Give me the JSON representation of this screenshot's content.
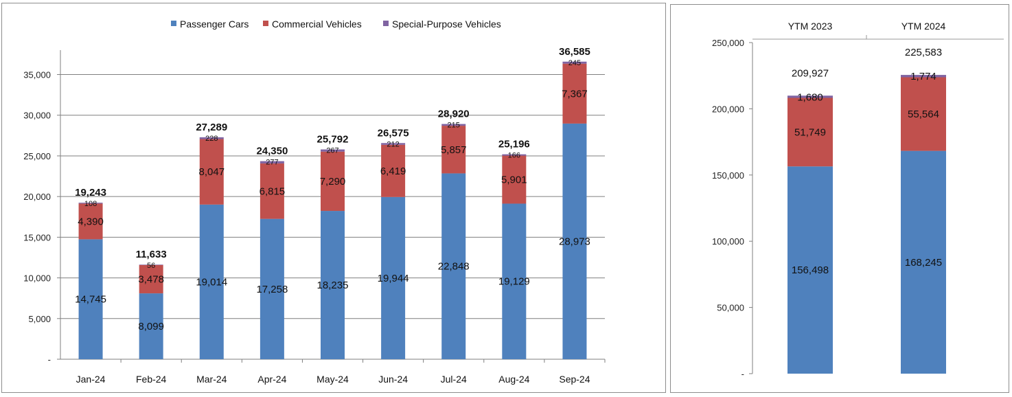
{
  "chart_data": [
    {
      "type": "bar",
      "stacked": true,
      "categories": [
        "Jan-24",
        "Feb-24",
        "Mar-24",
        "Apr-24",
        "May-24",
        "Jun-24",
        "Jul-24",
        "Aug-24",
        "Sep-24"
      ],
      "series": [
        {
          "name": "Passenger Cars",
          "color": "#4f81bd",
          "values": [
            14745,
            8099,
            19014,
            17258,
            18235,
            19944,
            22848,
            19129,
            28973
          ],
          "labels": [
            "14,745",
            "8,099",
            "19,014",
            "17,258",
            "18,235",
            "19,944",
            "22,848",
            "19,129",
            "28,973"
          ]
        },
        {
          "name": "Commercial Vehicles",
          "color": "#c0504d",
          "values": [
            4390,
            3478,
            8047,
            6815,
            7290,
            6419,
            5857,
            5901,
            7367
          ],
          "labels": [
            "4,390",
            "3,478",
            "8,047",
            "6,815",
            "7,290",
            "6,419",
            "5,857",
            "5,901",
            "7,367"
          ]
        },
        {
          "name": "Special-Purpose Vehicles",
          "color": "#8064a2",
          "values": [
            108,
            56,
            228,
            277,
            267,
            212,
            215,
            166,
            245
          ],
          "labels": [
            "108",
            "56",
            "228",
            "277",
            "267",
            "212",
            "215",
            "166",
            "245"
          ]
        }
      ],
      "totals": [
        19243,
        11633,
        27289,
        24350,
        25792,
        26575,
        28920,
        25196,
        36585
      ],
      "total_labels": [
        "19,243",
        "11,633",
        "27,289",
        "24,350",
        "25,792",
        "26,575",
        "28,920",
        "25,196",
        "36,585"
      ],
      "ylim": [
        0,
        38000
      ],
      "yticks": [
        0,
        5000,
        10000,
        15000,
        20000,
        25000,
        30000,
        35000
      ],
      "ytick_labels": [
        "-",
        "5,000",
        "10,000",
        "15,000",
        "20,000",
        "25,000",
        "30,000",
        "35,000"
      ],
      "grid": true,
      "legend_position": "top"
    },
    {
      "type": "bar",
      "stacked": true,
      "categories": [
        "YTM 2023",
        "YTM 2024"
      ],
      "series": [
        {
          "name": "Passenger Cars",
          "color": "#4f81bd",
          "values": [
            156498,
            168245
          ],
          "labels": [
            "156,498",
            "168,245"
          ]
        },
        {
          "name": "Commercial Vehicles",
          "color": "#c0504d",
          "values": [
            51749,
            55564
          ],
          "labels": [
            "51,749",
            "55,564"
          ]
        },
        {
          "name": "Special-Purpose Vehicles",
          "color": "#8064a2",
          "values": [
            1680,
            1774
          ],
          "labels": [
            "1,680",
            "1,774"
          ]
        }
      ],
      "totals": [
        209927,
        225583
      ],
      "total_labels": [
        "209,927",
        "225,583"
      ],
      "ylim": [
        0,
        250000
      ],
      "yticks": [
        0,
        50000,
        100000,
        150000,
        200000,
        250000
      ],
      "ytick_labels": [
        "-",
        "50,000",
        "100,000",
        "150,000",
        "200,000",
        "250,000"
      ],
      "grid": false,
      "category_axis": "top"
    }
  ]
}
